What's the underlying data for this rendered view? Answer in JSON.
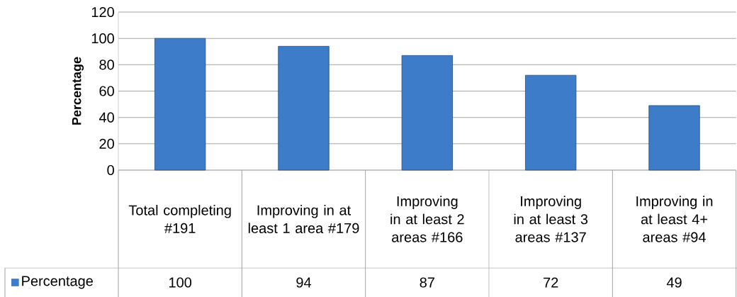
{
  "chart_data": {
    "type": "bar",
    "ylabel": "Percentage",
    "categories": [
      "Total completing #191",
      "Improving in at least 1 area #179",
      "Improving in at least 2 areas #166",
      "Improving in at least 3 areas #137",
      "Improving in at least 4+ areas #94"
    ],
    "series": [
      {
        "name": "Percentage",
        "color": "#3d7cc9",
        "values": [
          100,
          94,
          87,
          72,
          49
        ]
      }
    ],
    "ylim": [
      0,
      120
    ],
    "yticks": [
      0,
      20,
      40,
      60,
      80,
      100,
      120
    ],
    "grid": "y",
    "legend": "bottom left",
    "data_labels": true
  }
}
